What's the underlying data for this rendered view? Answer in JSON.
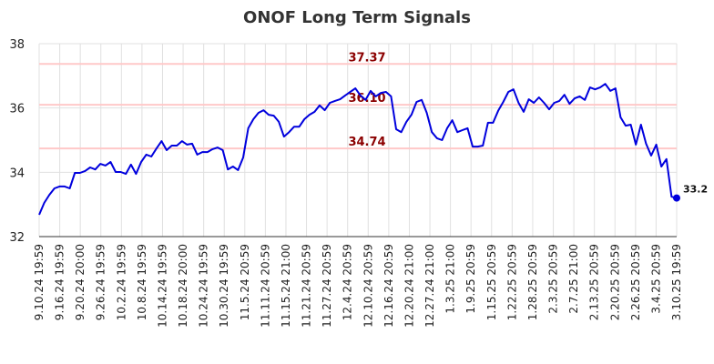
{
  "chart_data": {
    "type": "line",
    "title": "ONOF Long Term Signals",
    "xlabel": "",
    "ylabel": "",
    "ylim": [
      32,
      38
    ],
    "y_ticks": [
      32,
      34,
      36,
      38
    ],
    "grid": true,
    "x_tick_labels": [
      "9.10.24 19:59",
      "9.16.24 19:59",
      "9.20.24 20:00",
      "9.26.24 19:59",
      "10.2.24 19:59",
      "10.8.24 19:59",
      "10.14.24 19:59",
      "10.18.24 20:00",
      "10.24.24 19:59",
      "10.30.24 19:59",
      "11.5.24 20:59",
      "11.11.24 20:59",
      "11.15.24 21:00",
      "11.21.24 20:59",
      "11.27.24 20:59",
      "12.4.24 20:59",
      "12.10.24 20:59",
      "12.16.24 20:59",
      "12.20.24 21:00",
      "12.27.24 21:00",
      "1.3.25 21:00",
      "1.9.25 20:59",
      "1.15.25 20:59",
      "1.22.25 20:59",
      "1.28.25 20:59",
      "2.3.25 20:59",
      "2.7.25 21:00",
      "2.13.25 20:59",
      "2.20.25 20:59",
      "2.26.25 20:59",
      "3.4.25 20:59",
      "3.10.25 19:59"
    ],
    "values": [
      32.68,
      33.05,
      33.3,
      33.5,
      33.56,
      33.56,
      33.5,
      33.98,
      33.98,
      34.04,
      34.15,
      34.09,
      34.26,
      34.21,
      34.32,
      34.01,
      34.01,
      33.95,
      34.24,
      33.95,
      34.32,
      34.55,
      34.49,
      34.74,
      34.97,
      34.69,
      34.83,
      34.83,
      34.97,
      34.86,
      34.89,
      34.55,
      34.63,
      34.63,
      34.72,
      34.77,
      34.69,
      34.09,
      34.18,
      34.07,
      34.46,
      35.37,
      35.65,
      35.85,
      35.93,
      35.79,
      35.76,
      35.57,
      35.11,
      35.25,
      35.42,
      35.42,
      35.65,
      35.79,
      35.88,
      36.08,
      35.93,
      36.16,
      36.22,
      36.27,
      36.39,
      36.5,
      36.61,
      36.39,
      36.25,
      36.53,
      36.36,
      36.47,
      36.5,
      36.36,
      35.34,
      35.25,
      35.57,
      35.79,
      36.19,
      36.25,
      35.85,
      35.25,
      35.06,
      35.0,
      35.37,
      35.62,
      35.25,
      35.31,
      35.37,
      34.8,
      34.8,
      34.83,
      35.54,
      35.54,
      35.91,
      36.19,
      36.5,
      36.58,
      36.16,
      35.88,
      36.27,
      36.16,
      36.33,
      36.16,
      35.96,
      36.16,
      36.22,
      36.41,
      36.13,
      36.3,
      36.36,
      36.25,
      36.64,
      36.58,
      36.64,
      36.75,
      36.53,
      36.61,
      35.71,
      35.45,
      35.48,
      34.86,
      35.48,
      34.89,
      34.52,
      34.86,
      34.18,
      34.41,
      33.24,
      33.2
    ],
    "last_value_label": "33.2",
    "horizontal_lines": [
      {
        "value": 37.37,
        "label": "37.37"
      },
      {
        "value": 36.1,
        "label": "36.10"
      },
      {
        "value": 34.74,
        "label": "34.74"
      }
    ],
    "colors": {
      "line": "#0000dd",
      "hline": "#ffc8c8",
      "hlabel": "#8b0000",
      "grid": "#e0e0e0"
    }
  }
}
